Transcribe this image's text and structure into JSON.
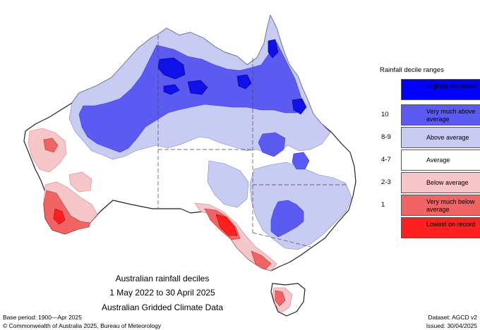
{
  "legend": {
    "title": "Rainfall decile ranges",
    "items": [
      {
        "num": "",
        "label": "Highest on record",
        "color": "#0000ff"
      },
      {
        "num": "10",
        "label": "Very much above average",
        "color": "#5b5bf2"
      },
      {
        "num": "8-9",
        "label": "Above average",
        "color": "#c8cbf2"
      },
      {
        "num": "4-7",
        "label": "Average",
        "color": "#ffffff"
      },
      {
        "num": "2-3",
        "label": "Below average",
        "color": "#f7c6c8"
      },
      {
        "num": "1",
        "label": "Very much below average",
        "color": "#ef6464"
      },
      {
        "num": "",
        "label": "Lowest on record",
        "color": "#ff1f1f"
      }
    ]
  },
  "caption": {
    "line1": "Australian rainfall deciles",
    "line2": "1 May 2022 to 30 April 2025",
    "line3": "Australian Gridded Climate Data"
  },
  "footer": {
    "base_period": "Base period: 1900—Apr 2025",
    "dataset": "Dataset: AGCD v2",
    "copyright": "© Commonwealth of Australia 2025, Bureau of Meteorology",
    "issued": "Issued: 30/04/2025"
  }
}
